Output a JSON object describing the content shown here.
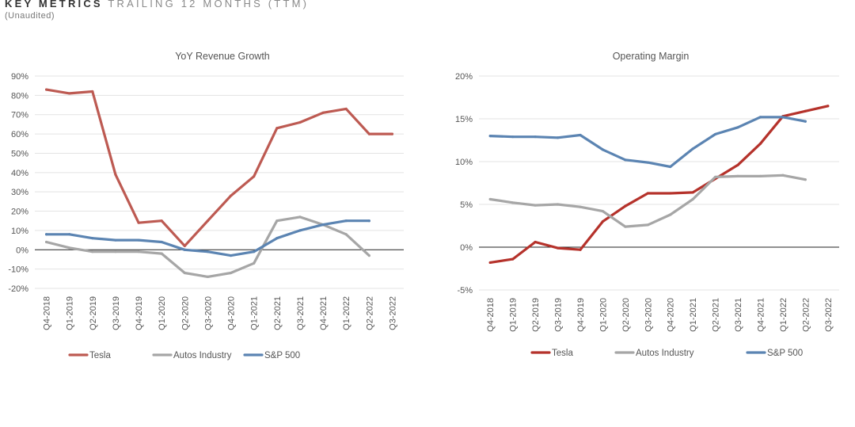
{
  "header": {
    "title_strong": "KEY METRICS",
    "title_light": "TRAILING 12 MONTHS (TTM)",
    "subtitle": "(Unaudited)"
  },
  "chart_data": [
    {
      "type": "line",
      "title": "YoY Revenue Growth",
      "x": [
        "Q4-2018",
        "Q1-2019",
        "Q2-2019",
        "Q3-2019",
        "Q4-2019",
        "Q1-2020",
        "Q2-2020",
        "Q3-2020",
        "Q4-2020",
        "Q1-2021",
        "Q2-2021",
        "Q3-2021",
        "Q4-2021",
        "Q1-2022",
        "Q2-2022",
        "Q3-2022"
      ],
      "ylim": [
        -20,
        90
      ],
      "yticks": [
        -20,
        -10,
        0,
        10,
        20,
        30,
        40,
        50,
        60,
        70,
        80,
        90
      ],
      "ytick_labels": [
        "-20%",
        "-10%",
        "0%",
        "10%",
        "20%",
        "30%",
        "40%",
        "50%",
        "60%",
        "70%",
        "80%",
        "90%"
      ],
      "series": [
        {
          "name": "Tesla",
          "color": "#bd5a52",
          "values": [
            83,
            81,
            82,
            39,
            14,
            15,
            2,
            15,
            28,
            38,
            63,
            66,
            71,
            73,
            60,
            60
          ]
        },
        {
          "name": "Autos Industry",
          "color": "#a6a6a6",
          "values": [
            4,
            1,
            -1,
            -1,
            -1,
            -2,
            -12,
            -14,
            -12,
            -7,
            15,
            17,
            13,
            8,
            -3,
            null
          ]
        },
        {
          "name": "S&P 500",
          "color": "#5b84b2",
          "values": [
            8,
            8,
            6,
            5,
            5,
            4,
            0,
            -1,
            -3,
            -1,
            6,
            10,
            13,
            15,
            15,
            null
          ]
        }
      ]
    },
    {
      "type": "line",
      "title": "Operating Margin",
      "x": [
        "Q4-2018",
        "Q1-2019",
        "Q2-2019",
        "Q3-2019",
        "Q4-2019",
        "Q1-2020",
        "Q2-2020",
        "Q3-2020",
        "Q4-2020",
        "Q1-2021",
        "Q2-2021",
        "Q3-2021",
        "Q4-2021",
        "Q1-2022",
        "Q2-2022",
        "Q3-2022"
      ],
      "ylim": [
        -5,
        20
      ],
      "yticks": [
        -5,
        0,
        5,
        10,
        15,
        20
      ],
      "ytick_labels": [
        "-5%",
        "0%",
        "5%",
        "10%",
        "15%",
        "20%"
      ],
      "series": [
        {
          "name": "Tesla",
          "color": "#b5322b",
          "values": [
            -1.8,
            -1.4,
            0.6,
            -0.1,
            -0.3,
            3.0,
            4.8,
            6.3,
            6.3,
            6.4,
            8.0,
            9.6,
            12.1,
            15.3,
            15.9,
            16.5
          ]
        },
        {
          "name": "Autos Industry",
          "color": "#a6a6a6",
          "values": [
            5.6,
            5.2,
            4.9,
            5.0,
            4.7,
            4.2,
            2.4,
            2.6,
            3.8,
            5.6,
            8.2,
            8.3,
            8.3,
            8.4,
            7.9,
            null
          ]
        },
        {
          "name": "S&P 500",
          "color": "#5b84b2",
          "values": [
            13.0,
            12.9,
            12.9,
            12.8,
            13.1,
            11.4,
            10.2,
            9.9,
            9.4,
            11.5,
            13.2,
            14.0,
            15.2,
            15.2,
            14.7,
            null
          ]
        }
      ]
    }
  ]
}
